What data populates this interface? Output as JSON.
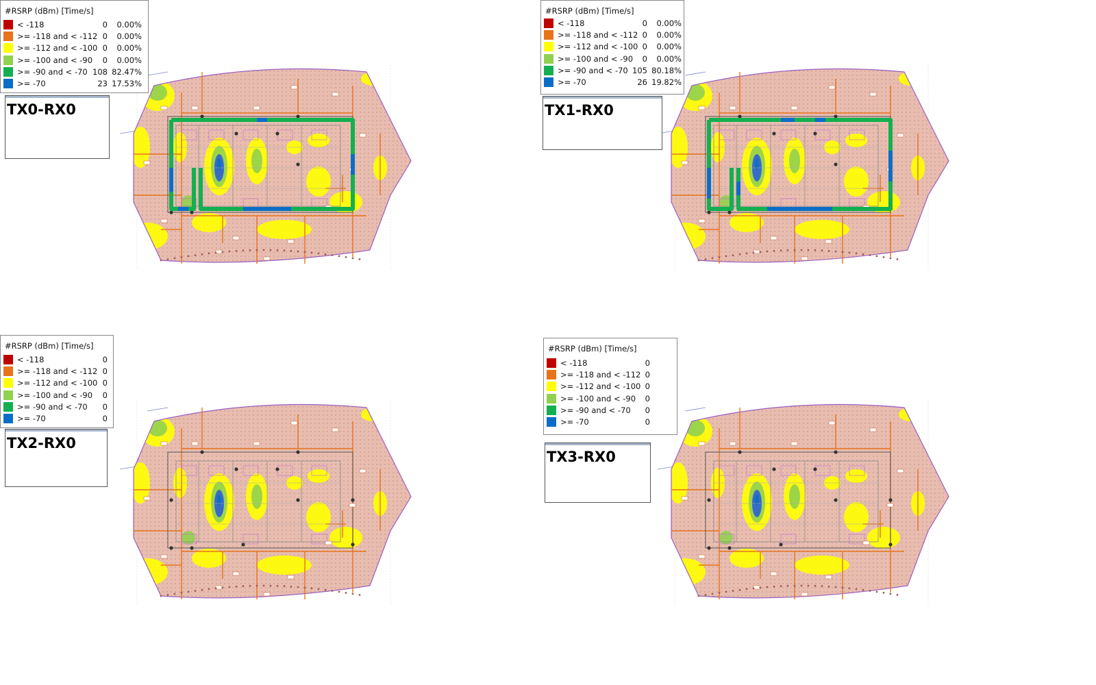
{
  "legend_colors": {
    "lt_118": "#c00000",
    "r118_112": "#e8731a",
    "r112_100": "#ffff00",
    "r100_90": "#92d050",
    "r90_70": "#12b050",
    "ge_70": "#0a6ec8"
  },
  "floor_colors": {
    "background": "#e8bdb0",
    "outline": "#9a5ec0",
    "wall": "#e8731a",
    "structure": "#333333"
  },
  "panels": [
    {
      "label": "TX0-RX0",
      "legend": {
        "title": "#RSRP (dBm) [Time/s]",
        "rows": [
          {
            "label": "< -118",
            "count": "0",
            "pct": "0.00%"
          },
          {
            "label": ">= -118 and < -112",
            "count": "0",
            "pct": "0.00%"
          },
          {
            "label": ">= -112 and < -100",
            "count": "0",
            "pct": "0.00%"
          },
          {
            "label": ">= -100 and < -90",
            "count": "0",
            "pct": "0.00%"
          },
          {
            "label": ">= -90 and < -70",
            "count": "108",
            "pct": "82.47%"
          },
          {
            "label": ">= -70",
            "count": "23",
            "pct": "17.53%"
          }
        ]
      },
      "route": {
        "visible": true,
        "predominant": ">= -90 and < -70"
      }
    },
    {
      "label": "TX1-RX0",
      "legend": {
        "title": "#RSRP (dBm) [Time/s]",
        "rows": [
          {
            "label": "< -118",
            "count": "0",
            "pct": "0.00%"
          },
          {
            "label": ">= -118 and < -112",
            "count": "0",
            "pct": "0.00%"
          },
          {
            "label": ">= -112 and < -100",
            "count": "0",
            "pct": "0.00%"
          },
          {
            "label": ">= -100 and < -90",
            "count": "0",
            "pct": "0.00%"
          },
          {
            "label": ">= -90 and < -70",
            "count": "105",
            "pct": "80.18%"
          },
          {
            "label": ">= -70",
            "count": "26",
            "pct": "19.82%"
          }
        ]
      },
      "route": {
        "visible": true,
        "predominant": ">= -90 and < -70"
      }
    },
    {
      "label": "TX2-RX0",
      "legend": {
        "title": "#RSRP (dBm) [Time/s]",
        "rows": [
          {
            "label": "< -118",
            "count": "0",
            "pct": ""
          },
          {
            "label": ">= -118 and < -112",
            "count": "0",
            "pct": ""
          },
          {
            "label": ">= -112 and < -100",
            "count": "0",
            "pct": ""
          },
          {
            "label": ">= -100 and < -90",
            "count": "0",
            "pct": ""
          },
          {
            "label": ">= -90 and < -70",
            "count": "0",
            "pct": ""
          },
          {
            "label": ">= -70",
            "count": "0",
            "pct": ""
          }
        ]
      },
      "route": {
        "visible": false
      }
    },
    {
      "label": "TX3-RX0",
      "legend": {
        "title": "#RSRP (dBm) [Time/s]",
        "rows": [
          {
            "label": "< -118",
            "count": "0",
            "pct": ""
          },
          {
            "label": ">= -118 and < -112",
            "count": "0",
            "pct": ""
          },
          {
            "label": ">= -112 and < -100",
            "count": "0",
            "pct": ""
          },
          {
            "label": ">= -100 and < -90",
            "count": "0",
            "pct": ""
          },
          {
            "label": ">= -90 and < -70",
            "count": "0",
            "pct": ""
          },
          {
            "label": ">= -70",
            "count": "0",
            "pct": ""
          }
        ]
      },
      "route": {
        "visible": false
      }
    }
  ]
}
